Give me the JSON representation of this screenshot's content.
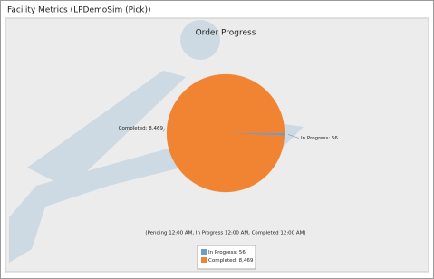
{
  "panel_title": "Facility Metrics (LPDemoSim (Pick))",
  "chart_data": {
    "type": "pie",
    "title": "Order Progress",
    "subtitle": "(Pending 12:00 AM, In Progress 12:00 AM, Completed 12:00 AM)",
    "values": [
      56,
      8469
    ],
    "value_labels": [
      "In Progress: 56",
      "Completed: 8,469"
    ],
    "colors": [
      "#6b9bd0",
      "#f08432"
    ]
  }
}
